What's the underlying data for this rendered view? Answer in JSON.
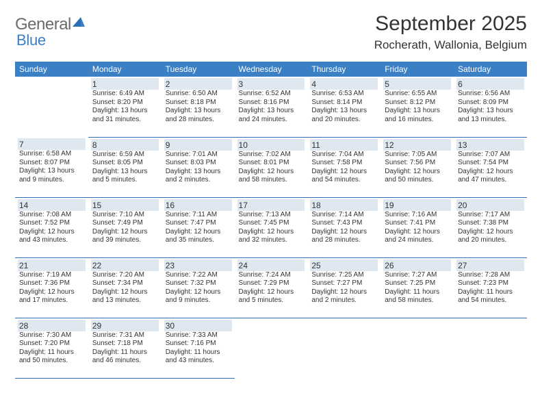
{
  "logo": {
    "part1": "General",
    "part2": "Blue"
  },
  "title": "September 2025",
  "location": "Rocherath, Wallonia, Belgium",
  "colors": {
    "header_bg": "#3b7fc4",
    "daynum_bg": "#dfe8f1",
    "line": "#2d6fb7",
    "text": "#333333",
    "logo_gray": "#6b6b6b",
    "logo_blue": "#3b7fc4"
  },
  "layout": {
    "cols": 7,
    "rows": 5,
    "col_width_pct": 14.28
  },
  "daysOfWeek": [
    "Sunday",
    "Monday",
    "Tuesday",
    "Wednesday",
    "Thursday",
    "Friday",
    "Saturday"
  ],
  "days": [
    {
      "n": "",
      "sunrise": "",
      "sunset": "",
      "daylight_a": "",
      "daylight_b": "",
      "empty": true
    },
    {
      "n": "1",
      "sunrise": "Sunrise: 6:49 AM",
      "sunset": "Sunset: 8:20 PM",
      "daylight_a": "Daylight: 13 hours",
      "daylight_b": "and 31 minutes."
    },
    {
      "n": "2",
      "sunrise": "Sunrise: 6:50 AM",
      "sunset": "Sunset: 8:18 PM",
      "daylight_a": "Daylight: 13 hours",
      "daylight_b": "and 28 minutes."
    },
    {
      "n": "3",
      "sunrise": "Sunrise: 6:52 AM",
      "sunset": "Sunset: 8:16 PM",
      "daylight_a": "Daylight: 13 hours",
      "daylight_b": "and 24 minutes."
    },
    {
      "n": "4",
      "sunrise": "Sunrise: 6:53 AM",
      "sunset": "Sunset: 8:14 PM",
      "daylight_a": "Daylight: 13 hours",
      "daylight_b": "and 20 minutes."
    },
    {
      "n": "5",
      "sunrise": "Sunrise: 6:55 AM",
      "sunset": "Sunset: 8:12 PM",
      "daylight_a": "Daylight: 13 hours",
      "daylight_b": "and 16 minutes."
    },
    {
      "n": "6",
      "sunrise": "Sunrise: 6:56 AM",
      "sunset": "Sunset: 8:09 PM",
      "daylight_a": "Daylight: 13 hours",
      "daylight_b": "and 13 minutes."
    },
    {
      "n": "7",
      "sunrise": "Sunrise: 6:58 AM",
      "sunset": "Sunset: 8:07 PM",
      "daylight_a": "Daylight: 13 hours",
      "daylight_b": "and 9 minutes."
    },
    {
      "n": "8",
      "sunrise": "Sunrise: 6:59 AM",
      "sunset": "Sunset: 8:05 PM",
      "daylight_a": "Daylight: 13 hours",
      "daylight_b": "and 5 minutes."
    },
    {
      "n": "9",
      "sunrise": "Sunrise: 7:01 AM",
      "sunset": "Sunset: 8:03 PM",
      "daylight_a": "Daylight: 13 hours",
      "daylight_b": "and 2 minutes."
    },
    {
      "n": "10",
      "sunrise": "Sunrise: 7:02 AM",
      "sunset": "Sunset: 8:01 PM",
      "daylight_a": "Daylight: 12 hours",
      "daylight_b": "and 58 minutes."
    },
    {
      "n": "11",
      "sunrise": "Sunrise: 7:04 AM",
      "sunset": "Sunset: 7:58 PM",
      "daylight_a": "Daylight: 12 hours",
      "daylight_b": "and 54 minutes."
    },
    {
      "n": "12",
      "sunrise": "Sunrise: 7:05 AM",
      "sunset": "Sunset: 7:56 PM",
      "daylight_a": "Daylight: 12 hours",
      "daylight_b": "and 50 minutes."
    },
    {
      "n": "13",
      "sunrise": "Sunrise: 7:07 AM",
      "sunset": "Sunset: 7:54 PM",
      "daylight_a": "Daylight: 12 hours",
      "daylight_b": "and 47 minutes."
    },
    {
      "n": "14",
      "sunrise": "Sunrise: 7:08 AM",
      "sunset": "Sunset: 7:52 PM",
      "daylight_a": "Daylight: 12 hours",
      "daylight_b": "and 43 minutes."
    },
    {
      "n": "15",
      "sunrise": "Sunrise: 7:10 AM",
      "sunset": "Sunset: 7:49 PM",
      "daylight_a": "Daylight: 12 hours",
      "daylight_b": "and 39 minutes."
    },
    {
      "n": "16",
      "sunrise": "Sunrise: 7:11 AM",
      "sunset": "Sunset: 7:47 PM",
      "daylight_a": "Daylight: 12 hours",
      "daylight_b": "and 35 minutes."
    },
    {
      "n": "17",
      "sunrise": "Sunrise: 7:13 AM",
      "sunset": "Sunset: 7:45 PM",
      "daylight_a": "Daylight: 12 hours",
      "daylight_b": "and 32 minutes."
    },
    {
      "n": "18",
      "sunrise": "Sunrise: 7:14 AM",
      "sunset": "Sunset: 7:43 PM",
      "daylight_a": "Daylight: 12 hours",
      "daylight_b": "and 28 minutes."
    },
    {
      "n": "19",
      "sunrise": "Sunrise: 7:16 AM",
      "sunset": "Sunset: 7:41 PM",
      "daylight_a": "Daylight: 12 hours",
      "daylight_b": "and 24 minutes."
    },
    {
      "n": "20",
      "sunrise": "Sunrise: 7:17 AM",
      "sunset": "Sunset: 7:38 PM",
      "daylight_a": "Daylight: 12 hours",
      "daylight_b": "and 20 minutes."
    },
    {
      "n": "21",
      "sunrise": "Sunrise: 7:19 AM",
      "sunset": "Sunset: 7:36 PM",
      "daylight_a": "Daylight: 12 hours",
      "daylight_b": "and 17 minutes."
    },
    {
      "n": "22",
      "sunrise": "Sunrise: 7:20 AM",
      "sunset": "Sunset: 7:34 PM",
      "daylight_a": "Daylight: 12 hours",
      "daylight_b": "and 13 minutes."
    },
    {
      "n": "23",
      "sunrise": "Sunrise: 7:22 AM",
      "sunset": "Sunset: 7:32 PM",
      "daylight_a": "Daylight: 12 hours",
      "daylight_b": "and 9 minutes."
    },
    {
      "n": "24",
      "sunrise": "Sunrise: 7:24 AM",
      "sunset": "Sunset: 7:29 PM",
      "daylight_a": "Daylight: 12 hours",
      "daylight_b": "and 5 minutes."
    },
    {
      "n": "25",
      "sunrise": "Sunrise: 7:25 AM",
      "sunset": "Sunset: 7:27 PM",
      "daylight_a": "Daylight: 12 hours",
      "daylight_b": "and 2 minutes."
    },
    {
      "n": "26",
      "sunrise": "Sunrise: 7:27 AM",
      "sunset": "Sunset: 7:25 PM",
      "daylight_a": "Daylight: 11 hours",
      "daylight_b": "and 58 minutes."
    },
    {
      "n": "27",
      "sunrise": "Sunrise: 7:28 AM",
      "sunset": "Sunset: 7:23 PM",
      "daylight_a": "Daylight: 11 hours",
      "daylight_b": "and 54 minutes."
    },
    {
      "n": "28",
      "sunrise": "Sunrise: 7:30 AM",
      "sunset": "Sunset: 7:20 PM",
      "daylight_a": "Daylight: 11 hours",
      "daylight_b": "and 50 minutes."
    },
    {
      "n": "29",
      "sunrise": "Sunrise: 7:31 AM",
      "sunset": "Sunset: 7:18 PM",
      "daylight_a": "Daylight: 11 hours",
      "daylight_b": "and 46 minutes."
    },
    {
      "n": "30",
      "sunrise": "Sunrise: 7:33 AM",
      "sunset": "Sunset: 7:16 PM",
      "daylight_a": "Daylight: 11 hours",
      "daylight_b": "and 43 minutes."
    },
    {
      "n": "",
      "sunrise": "",
      "sunset": "",
      "daylight_a": "",
      "daylight_b": "",
      "empty": true
    },
    {
      "n": "",
      "sunrise": "",
      "sunset": "",
      "daylight_a": "",
      "daylight_b": "",
      "empty": true
    },
    {
      "n": "",
      "sunrise": "",
      "sunset": "",
      "daylight_a": "",
      "daylight_b": "",
      "empty": true
    },
    {
      "n": "",
      "sunrise": "",
      "sunset": "",
      "daylight_a": "",
      "daylight_b": "",
      "empty": true
    }
  ]
}
